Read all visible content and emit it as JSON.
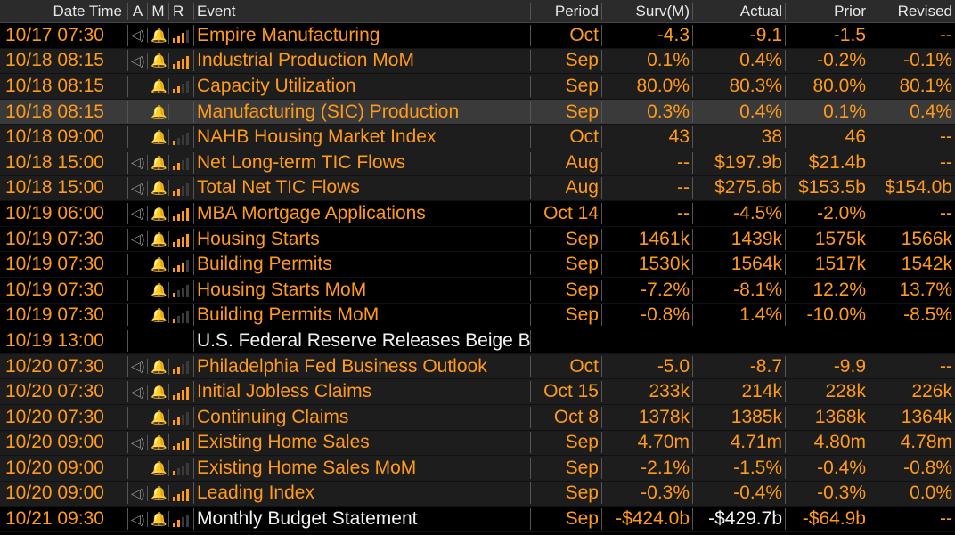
{
  "header": {
    "date_time": "Date Time",
    "a": "A",
    "m": "M",
    "r": "R",
    "event": "Event",
    "period": "Period",
    "surv": "Surv(M)",
    "actual": "Actual",
    "prior": "Prior",
    "revised": "Revised"
  },
  "rows": [
    {
      "date_time": "10/17 07:30",
      "audio": "◁)",
      "alert": "🔔",
      "event": "Empire Manufacturing",
      "period": "Oct",
      "surv": "-4.3",
      "actual": "-9.1",
      "prior": "-1.5",
      "revised": "--"
    },
    {
      "date_time": "10/18 08:15",
      "audio": "◁)",
      "alert": "🔔",
      "event": "Industrial Production MoM",
      "period": "Sep",
      "surv": "0.1%",
      "actual": "0.4%",
      "prior": "-0.2%",
      "revised": "-0.1%"
    },
    {
      "date_time": "10/18 08:15",
      "audio": "",
      "alert": "🔔",
      "event": "Capacity Utilization",
      "period": "Sep",
      "surv": "80.0%",
      "actual": "80.3%",
      "prior": "80.0%",
      "revised": "80.1%"
    },
    {
      "date_time": "10/18 08:15",
      "audio": "",
      "alert": "🔔",
      "event": "Manufacturing (SIC) Production",
      "period": "Sep",
      "surv": "0.3%",
      "actual": "0.4%",
      "prior": "0.1%",
      "revised": "0.4%"
    },
    {
      "date_time": "10/18 09:00",
      "audio": "",
      "alert": "🔔",
      "event": "NAHB Housing Market Index",
      "period": "Oct",
      "surv": "43",
      "actual": "38",
      "prior": "46",
      "revised": "--"
    },
    {
      "date_time": "10/18 15:00",
      "audio": "◁)",
      "alert": "🔔",
      "event": "Net Long-term TIC Flows",
      "period": "Aug",
      "surv": "--",
      "actual": "$197.9b",
      "prior": "$21.4b",
      "revised": "--"
    },
    {
      "date_time": "10/18 15:00",
      "audio": "◁)",
      "alert": "🔔",
      "event": "Total Net TIC Flows",
      "period": "Aug",
      "surv": "--",
      "actual": "$275.6b",
      "prior": "$153.5b",
      "revised": "$154.0b"
    },
    {
      "date_time": "10/19 06:00",
      "audio": "◁)",
      "alert": "🔔",
      "event": "MBA Mortgage Applications",
      "period": "Oct 14",
      "surv": "--",
      "actual": "-4.5%",
      "prior": "-2.0%",
      "revised": "--"
    },
    {
      "date_time": "10/19 07:30",
      "audio": "◁)",
      "alert": "🔔",
      "event": "Housing Starts",
      "period": "Sep",
      "surv": "1461k",
      "actual": "1439k",
      "prior": "1575k",
      "revised": "1566k"
    },
    {
      "date_time": "10/19 07:30",
      "audio": "",
      "alert": "🔔",
      "event": "Building Permits",
      "period": "Sep",
      "surv": "1530k",
      "actual": "1564k",
      "prior": "1517k",
      "revised": "1542k"
    },
    {
      "date_time": "10/19 07:30",
      "audio": "",
      "alert": "🔔",
      "event": "Housing Starts MoM",
      "period": "Sep",
      "surv": "-7.2%",
      "actual": "-8.1%",
      "prior": "12.2%",
      "revised": "13.7%"
    },
    {
      "date_time": "10/19 07:30",
      "audio": "",
      "alert": "🔔",
      "event": "Building Permits MoM",
      "period": "Sep",
      "surv": "-0.8%",
      "actual": "1.4%",
      "prior": "-10.0%",
      "revised": "-8.5%"
    },
    {
      "date_time": "10/19 13:00",
      "audio": "",
      "alert": "",
      "event": "U.S. Federal Reserve Releases Beige Book",
      "period": "",
      "surv": "",
      "actual": "",
      "prior": "",
      "revised": ""
    },
    {
      "date_time": "10/20 07:30",
      "audio": "◁)",
      "alert": "🔔",
      "event": "Philadelphia Fed Business Outlook",
      "period": "Oct",
      "surv": "-5.0",
      "actual": "-8.7",
      "prior": "-9.9",
      "revised": "--"
    },
    {
      "date_time": "10/20 07:30",
      "audio": "◁)",
      "alert": "🔔",
      "event": "Initial Jobless Claims",
      "period": "Oct 15",
      "surv": "233k",
      "actual": "214k",
      "prior": "228k",
      "revised": "226k"
    },
    {
      "date_time": "10/20 07:30",
      "audio": "",
      "alert": "🔔",
      "event": "Continuing Claims",
      "period": "Oct 8",
      "surv": "1378k",
      "actual": "1385k",
      "prior": "1368k",
      "revised": "1364k"
    },
    {
      "date_time": "10/20 09:00",
      "audio": "◁)",
      "alert": "🔔",
      "event": "Existing Home Sales",
      "period": "Sep",
      "surv": "4.70m",
      "actual": "4.71m",
      "prior": "4.80m",
      "revised": "4.78m"
    },
    {
      "date_time": "10/20 09:00",
      "audio": "",
      "alert": "🔔",
      "event": "Existing Home Sales MoM",
      "period": "Sep",
      "surv": "-2.1%",
      "actual": "-1.5%",
      "prior": "-0.4%",
      "revised": "-0.8%"
    },
    {
      "date_time": "10/20 09:00",
      "audio": "◁)",
      "alert": "🔔",
      "event": "Leading Index",
      "period": "Sep",
      "surv": "-0.3%",
      "actual": "-0.4%",
      "prior": "-0.3%",
      "revised": "0.0%"
    },
    {
      "date_time": "10/21 09:30",
      "audio": "◁)",
      "alert": "🔔",
      "event": "Monthly Budget Statement",
      "period": "Sep",
      "surv": "-$424.0b",
      "actual": "-$429.7b",
      "prior": "-$64.9b",
      "revised": "--"
    }
  ],
  "relevance": [
    3,
    4,
    2,
    0,
    1,
    2,
    2,
    4,
    4,
    3,
    1,
    1,
    0,
    2,
    4,
    2,
    4,
    1,
    4,
    2
  ],
  "colors": {
    "accent": "#ff9a1a",
    "header_bg": "#2b2b2b",
    "row_alt": "#1d1d1d",
    "highlight": "#3a3a3a",
    "white_text": "#f2f2f2"
  }
}
